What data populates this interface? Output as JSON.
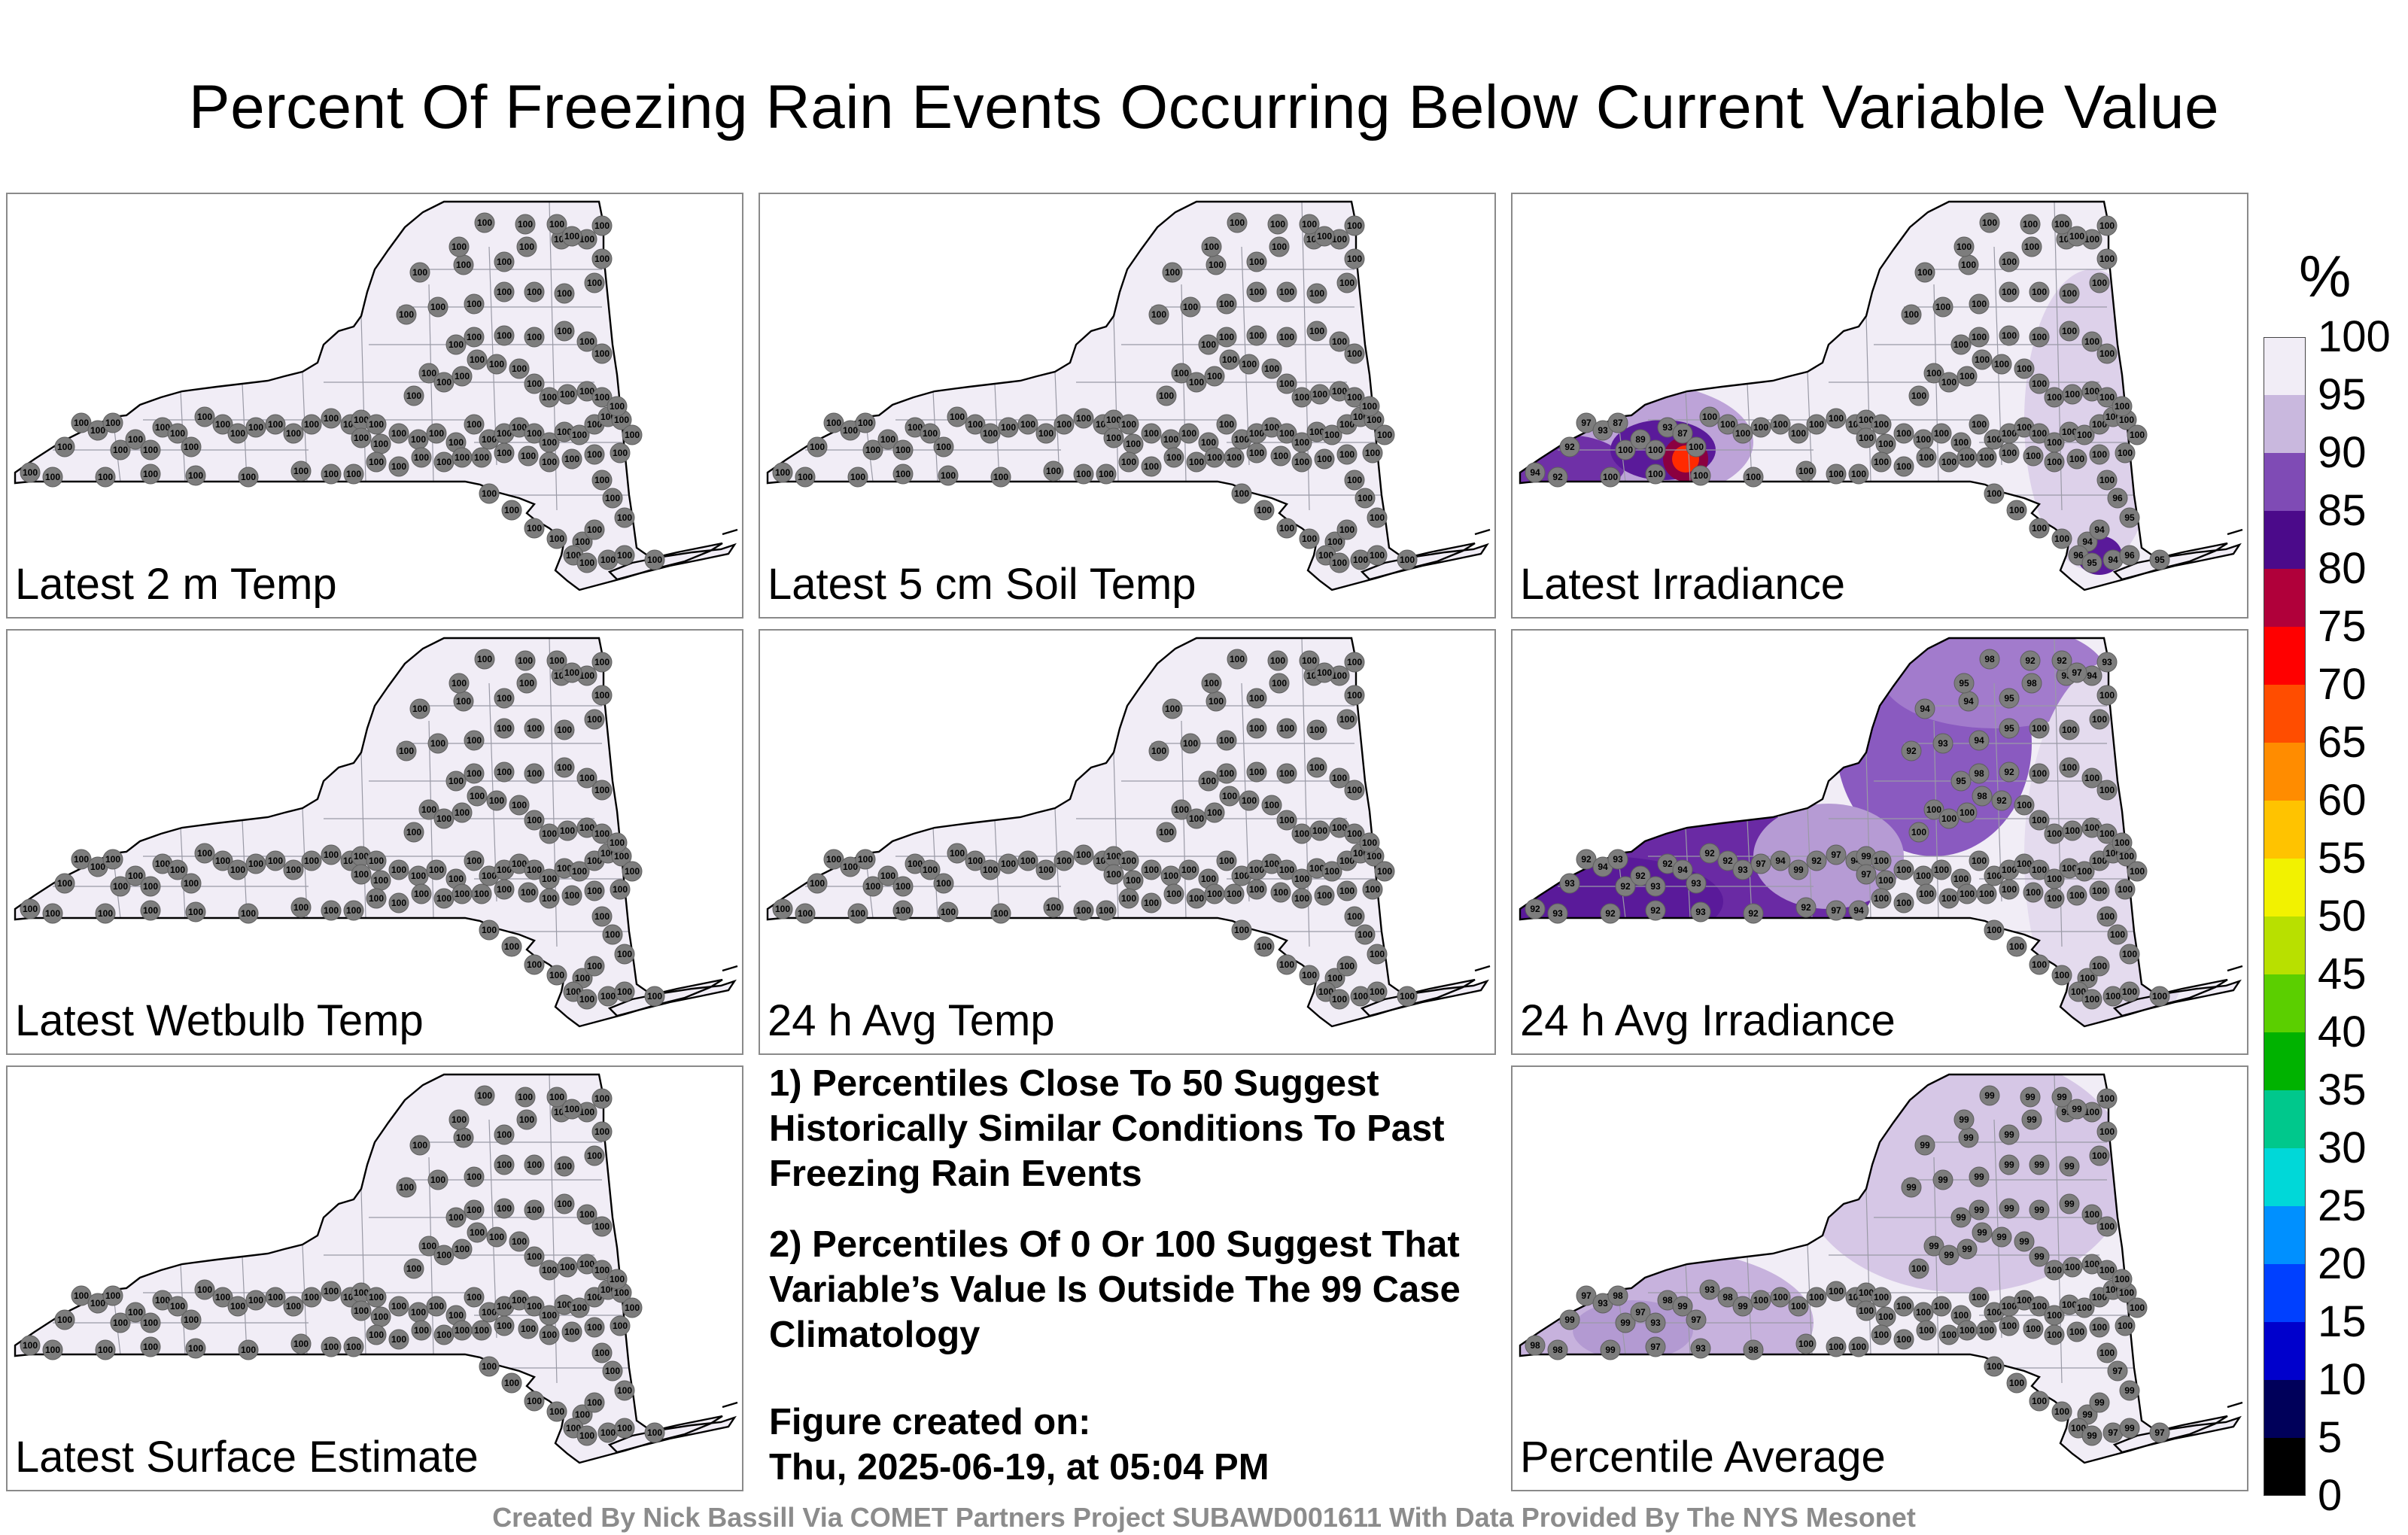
{
  "title": "Percent Of Freezing Rain Events Occurring Below Current Variable Value",
  "panels": [
    {
      "label": "Latest 2 m Temp",
      "mode": "uniform"
    },
    {
      "label": "Latest 5 cm Soil Temp",
      "mode": "uniform"
    },
    {
      "label": "Latest Irradiance",
      "mode": "irradiance"
    },
    {
      "label": "Latest Wetbulb Temp",
      "mode": "uniform"
    },
    {
      "label": "24 h Avg Temp",
      "mode": "uniform"
    },
    {
      "label": "24 h Avg Irradiance",
      "mode": "avgirr"
    },
    {
      "label": "Latest Surface Estimate",
      "mode": "uniform"
    },
    {
      "label": "Percentile Average",
      "mode": "average"
    }
  ],
  "notes": [
    "1) Percentiles Close To 50 Suggest Historically Similar Conditions To Past Freezing Rain Events",
    "2) Percentiles Of 0 Or 100 Suggest That Variable’s Value Is Outside The 99 Case Climatology"
  ],
  "created_label": "Figure created on:",
  "created_value": "Thu, 2025-06-19, at 05:04 PM",
  "credit": "Created By Nick Bassill Via COMET Partners Project SUBAWD001611 With Data Provided By The NYS Mesonet",
  "colorbar": {
    "unit": "%",
    "ticks": [
      "100",
      "95",
      "90",
      "85",
      "80",
      "75",
      "70",
      "65",
      "60",
      "55",
      "50",
      "45",
      "40",
      "35",
      "30",
      "25",
      "20",
      "15",
      "10",
      "5",
      "0"
    ],
    "colors": [
      "#f1edf6",
      "#c9b8de",
      "#7f4bb5",
      "#4b0a8a",
      "#b0003a",
      "#ff0000",
      "#ff4d00",
      "#ff8c00",
      "#ffc300",
      "#f2f200",
      "#b8e000",
      "#5bcf00",
      "#00b200",
      "#00c88c",
      "#00d8d8",
      "#0090ff",
      "#0040ff",
      "#0000cc",
      "#00005a",
      "#000000"
    ]
  }
}
